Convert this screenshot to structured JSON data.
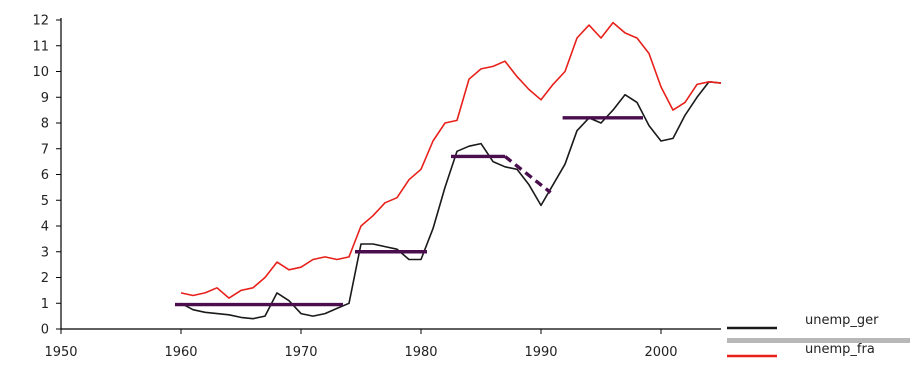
{
  "chart_data": {
    "type": "line",
    "title": "",
    "xlabel": "",
    "ylabel": "",
    "xlim": [
      1950,
      2005
    ],
    "ylim": [
      0,
      12
    ],
    "x_ticks": [
      1950,
      1960,
      1970,
      1980,
      1990,
      2000
    ],
    "y_ticks": [
      0,
      1,
      2,
      3,
      4,
      5,
      6,
      7,
      8,
      9,
      10,
      11,
      12
    ],
    "grid": false,
    "legend_position": "bottom-right",
    "series": [
      {
        "name": "unemp_ger",
        "color": "#1a1a1a",
        "x": [
          1960,
          1961,
          1962,
          1963,
          1964,
          1965,
          1966,
          1967,
          1968,
          1969,
          1970,
          1971,
          1972,
          1973,
          1974,
          1975,
          1976,
          1977,
          1978,
          1979,
          1980,
          1981,
          1982,
          1983,
          1984,
          1985,
          1986,
          1987,
          1988,
          1989,
          1990,
          1991,
          1992,
          1993,
          1994,
          1995,
          1996,
          1997,
          1998,
          1999,
          2000,
          2001,
          2002,
          2003,
          2004,
          2005
        ],
        "y": [
          1.0,
          0.75,
          0.65,
          0.6,
          0.55,
          0.45,
          0.4,
          0.5,
          1.4,
          1.1,
          0.6,
          0.5,
          0.6,
          0.8,
          1.0,
          3.3,
          3.3,
          3.2,
          3.1,
          2.7,
          2.7,
          3.9,
          5.5,
          6.9,
          7.1,
          7.2,
          6.5,
          6.3,
          6.2,
          5.6,
          4.8,
          5.6,
          6.4,
          7.7,
          8.2,
          8.0,
          8.5,
          9.1,
          8.8,
          7.9,
          7.3,
          7.4,
          8.3,
          9.0,
          9.6,
          9.55
        ]
      },
      {
        "name": "unemp_fra",
        "color": "#e8201a",
        "x": [
          1960,
          1961,
          1962,
          1963,
          1964,
          1965,
          1966,
          1967,
          1968,
          1969,
          1970,
          1971,
          1972,
          1973,
          1974,
          1975,
          1976,
          1977,
          1978,
          1979,
          1980,
          1981,
          1982,
          1983,
          1984,
          1985,
          1986,
          1987,
          1988,
          1989,
          1990,
          1991,
          1992,
          1993,
          1994,
          1995,
          1996,
          1997,
          1998,
          1999,
          2000,
          2001,
          2002,
          2003,
          2004,
          2005
        ],
        "y": [
          1.4,
          1.3,
          1.4,
          1.6,
          1.2,
          1.5,
          1.6,
          2.0,
          2.6,
          2.3,
          2.4,
          2.7,
          2.8,
          2.7,
          2.8,
          4.0,
          4.4,
          4.9,
          5.1,
          5.8,
          6.2,
          7.3,
          8.0,
          8.1,
          9.7,
          10.1,
          10.2,
          10.4,
          9.8,
          9.3,
          8.9,
          9.5,
          10.0,
          11.3,
          11.8,
          11.3,
          11.9,
          11.5,
          11.3,
          10.7,
          9.4,
          8.5,
          8.8,
          9.5,
          9.6,
          9.55
        ]
      }
    ],
    "annotations": [
      {
        "type": "segment",
        "style": "solid",
        "color": "#4a0e4e",
        "x": [
          1959.5,
          1973.5
        ],
        "y": [
          0.95,
          0.95
        ]
      },
      {
        "type": "segment",
        "style": "solid",
        "color": "#4a0e4e",
        "x": [
          1974.5,
          1980.5
        ],
        "y": [
          3.0,
          3.0
        ]
      },
      {
        "type": "segment",
        "style": "solid",
        "color": "#4a0e4e",
        "x": [
          1982.5,
          1987.0
        ],
        "y": [
          6.7,
          6.7
        ]
      },
      {
        "type": "segment",
        "style": "dashed",
        "color": "#4a0e4e",
        "x": [
          1987.0,
          1990.8
        ],
        "y": [
          6.7,
          5.3
        ]
      },
      {
        "type": "segment",
        "style": "solid",
        "color": "#4a0e4e",
        "x": [
          1991.8,
          1998.5
        ],
        "y": [
          8.2,
          8.2
        ]
      }
    ]
  },
  "legend_separator_color": "#b8b8b8"
}
